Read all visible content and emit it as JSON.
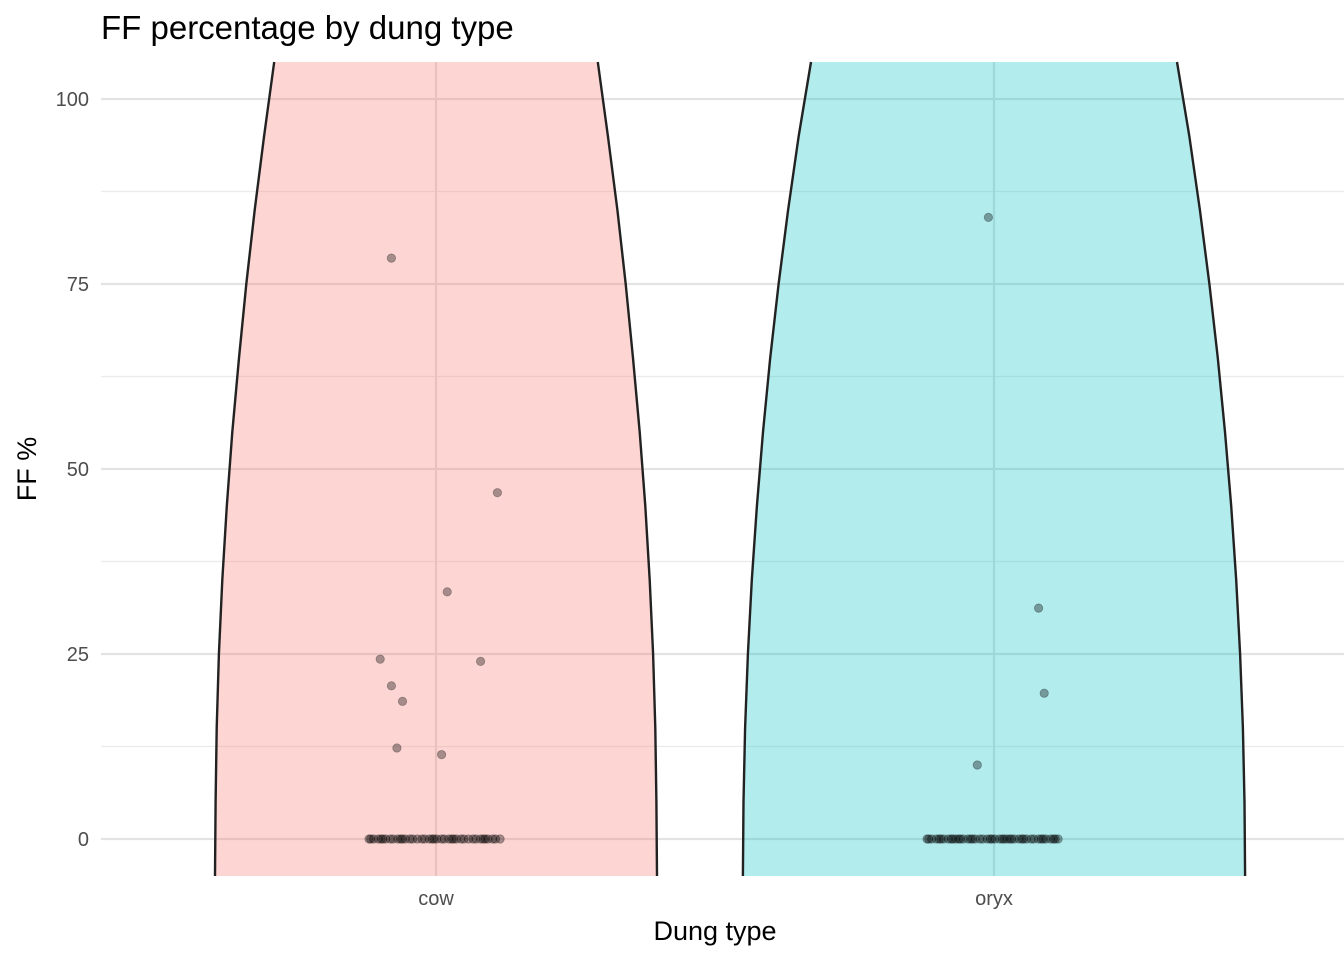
{
  "chart_data": {
    "type": "violin",
    "title": "FF percentage by dung type",
    "xlabel": "Dung type",
    "ylabel": "FF %",
    "categories": [
      "cow",
      "oryx"
    ],
    "ylim": [
      -5,
      105
    ],
    "yticks": [
      0,
      25,
      50,
      75,
      100
    ],
    "grid": true,
    "legend": "none",
    "fill_colors": [
      "#F8766D",
      "#00BFC4"
    ],
    "violin_alpha": 0.3,
    "series": [
      {
        "category": "cow",
        "outliers": [
          {
            "x": -0.08,
            "y": 78.5
          },
          {
            "x": 0.11,
            "y": 46.8
          },
          {
            "x": 0.02,
            "y": 33.4
          },
          {
            "x": -0.1,
            "y": 24.3
          },
          {
            "x": 0.08,
            "y": 24.0
          },
          {
            "x": -0.08,
            "y": 20.7
          },
          {
            "x": -0.06,
            "y": 18.6
          },
          {
            "x": -0.07,
            "y": 12.3
          },
          {
            "x": 0.01,
            "y": 11.4
          }
        ],
        "zero_count": 40,
        "zero_jitter": [
          -0.12,
          0.12
        ]
      },
      {
        "category": "oryx",
        "outliers": [
          {
            "x": -0.01,
            "y": 84.0
          },
          {
            "x": 0.08,
            "y": 31.2
          },
          {
            "x": 0.09,
            "y": 19.7
          },
          {
            "x": -0.03,
            "y": 10.0
          }
        ],
        "zero_count": 45,
        "zero_jitter": [
          -0.12,
          0.12
        ]
      }
    ],
    "violin_halfwidth": [
      {
        "y": -5,
        "w": 0.396
      },
      {
        "y": 5,
        "w": 0.395
      },
      {
        "y": 15,
        "w": 0.393
      },
      {
        "y": 25,
        "w": 0.389
      },
      {
        "y": 35,
        "w": 0.383
      },
      {
        "y": 45,
        "w": 0.375
      },
      {
        "y": 55,
        "w": 0.365
      },
      {
        "y": 65,
        "w": 0.353
      },
      {
        "y": 75,
        "w": 0.34
      },
      {
        "y": 85,
        "w": 0.325
      },
      {
        "y": 95,
        "w": 0.308
      },
      {
        "y": 105,
        "w": 0.29
      }
    ],
    "violin_halfwidth_oryx": [
      {
        "y": -5,
        "w": 0.45
      },
      {
        "y": 5,
        "w": 0.449
      },
      {
        "y": 15,
        "w": 0.446
      },
      {
        "y": 25,
        "w": 0.441
      },
      {
        "y": 35,
        "w": 0.434
      },
      {
        "y": 45,
        "w": 0.425
      },
      {
        "y": 55,
        "w": 0.414
      },
      {
        "y": 65,
        "w": 0.401
      },
      {
        "y": 75,
        "w": 0.386
      },
      {
        "y": 85,
        "w": 0.369
      },
      {
        "y": 95,
        "w": 0.35
      },
      {
        "y": 105,
        "w": 0.328
      }
    ]
  }
}
